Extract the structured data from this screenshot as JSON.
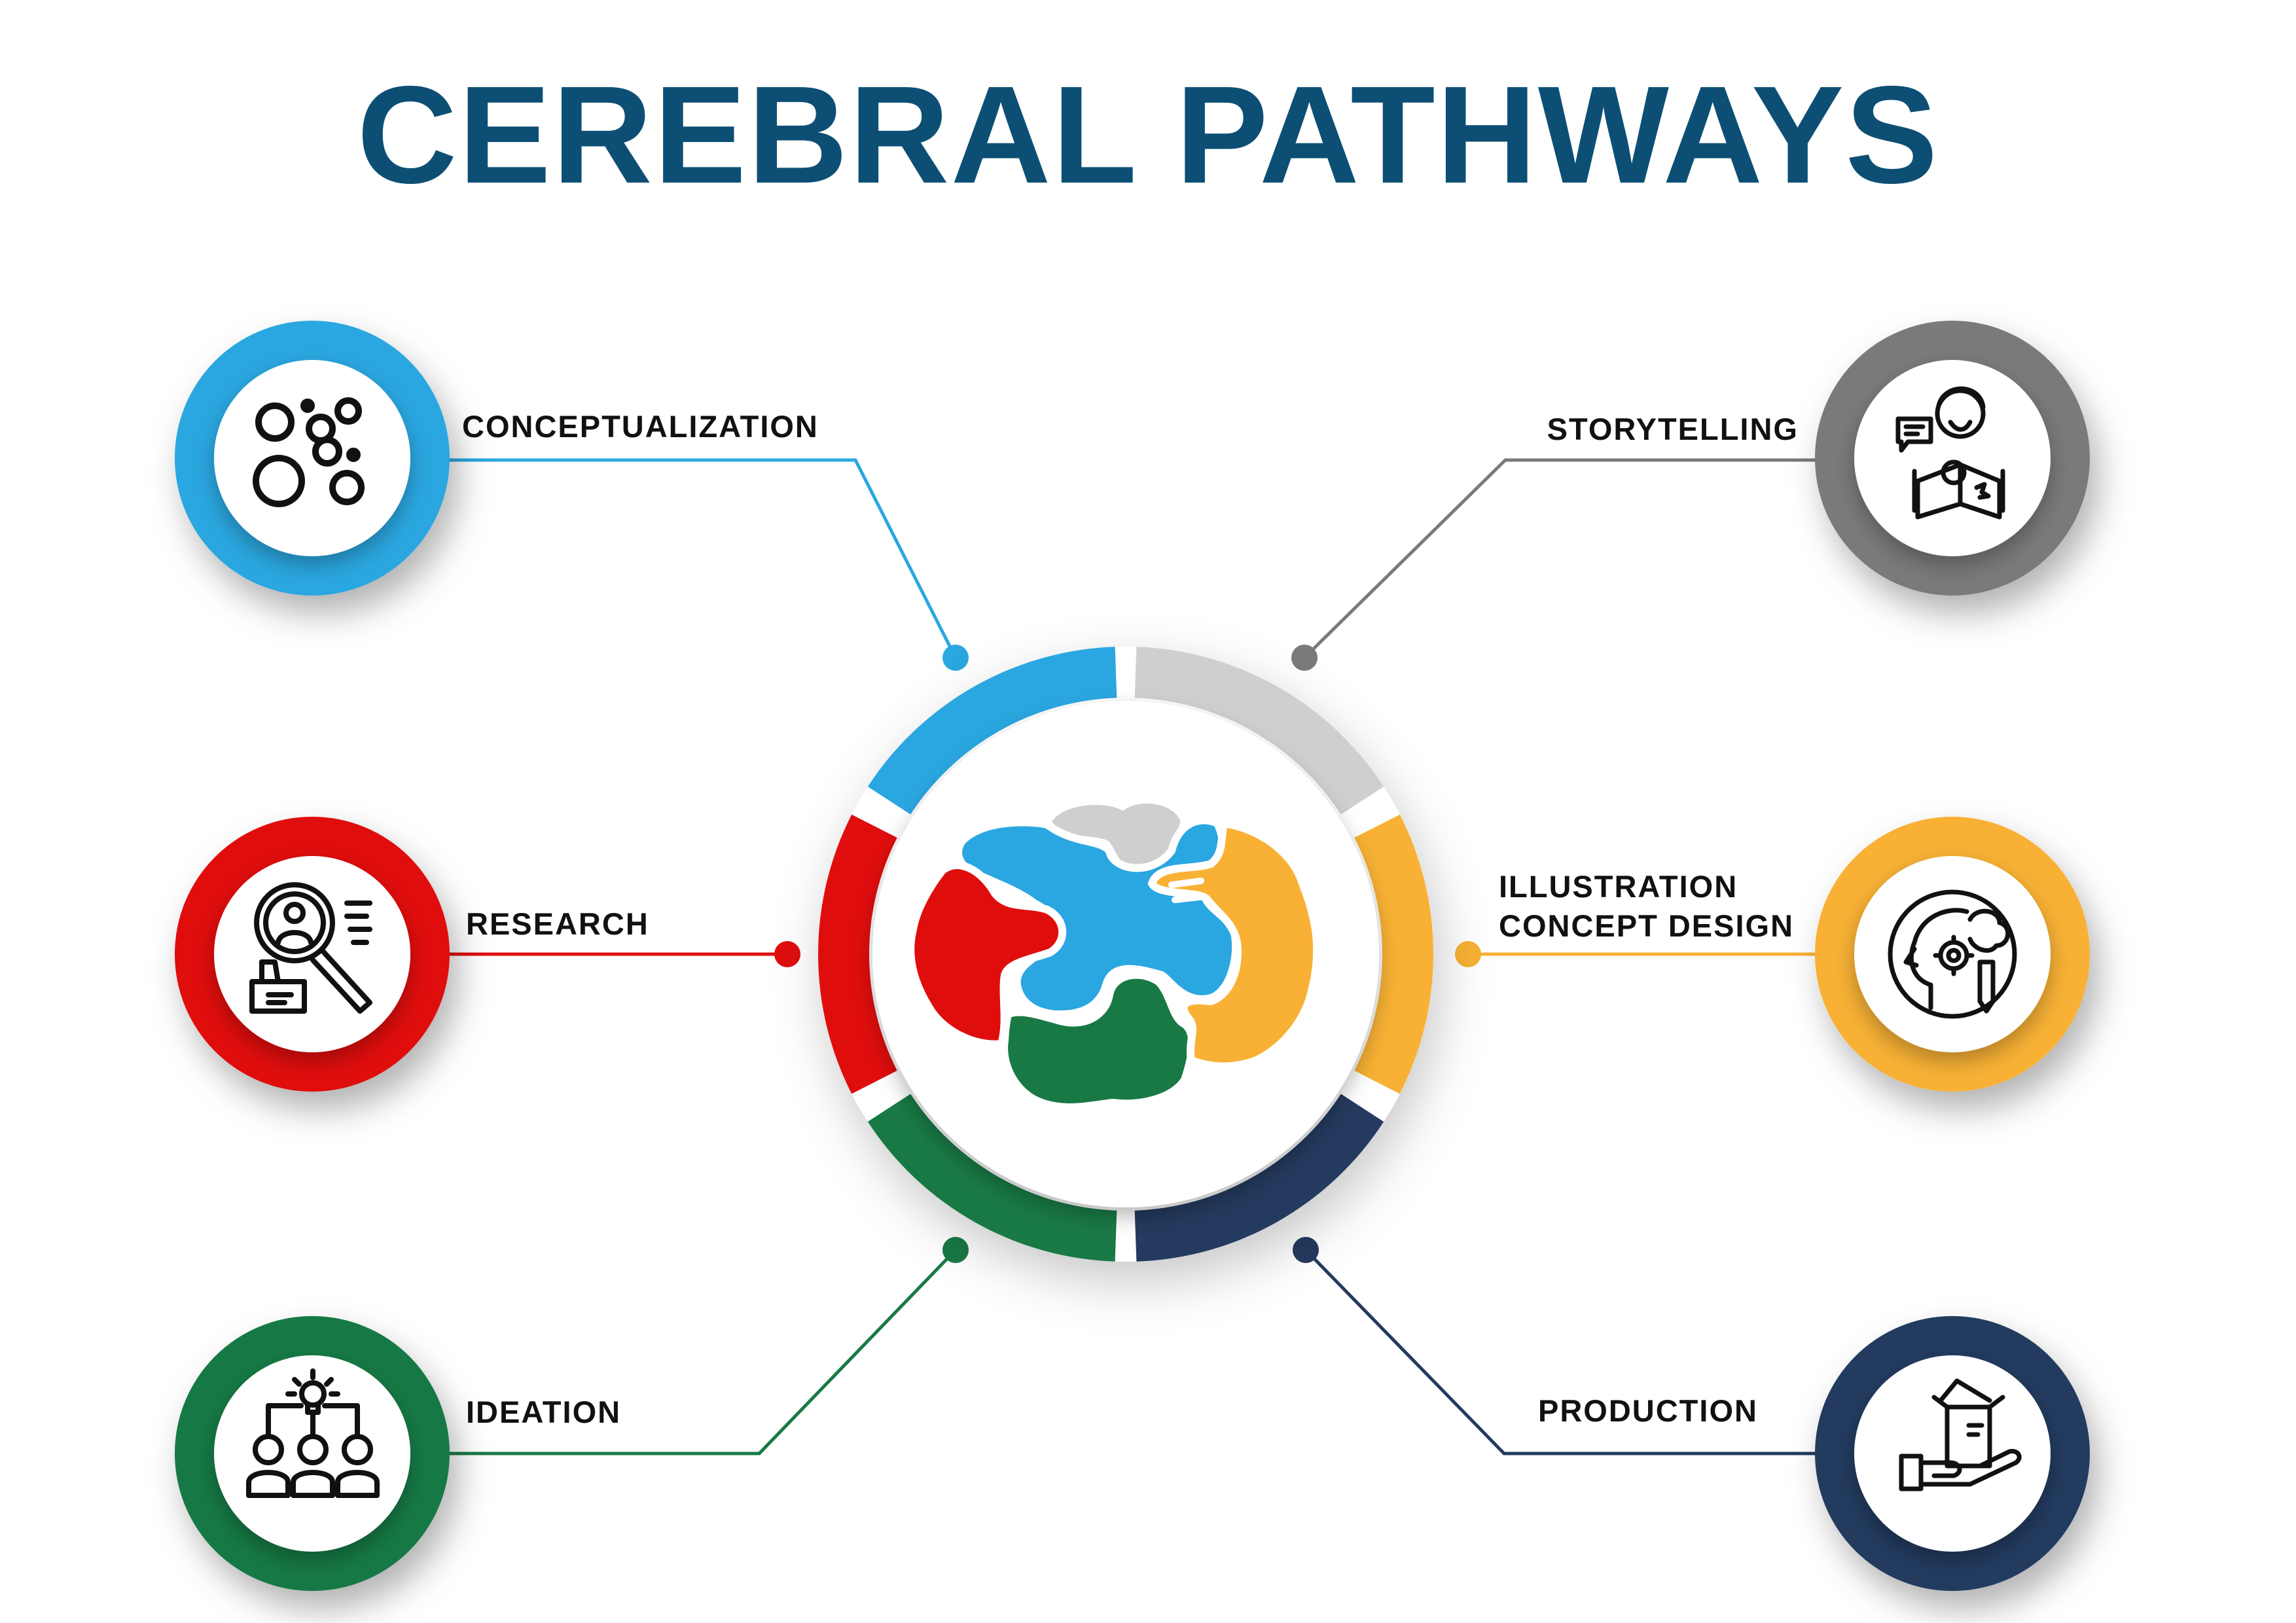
{
  "title": "CEREBRAL PATHWAYS",
  "colors": {
    "title": "#0d4f74",
    "conceptualization": "#2aa7e0",
    "research": "#e00d0d",
    "ideation": "#197944",
    "storytelling": "#7a7a7a",
    "storytelling_segment": "#cfcfcf",
    "illustration": "#f8b134",
    "production": "#243a5e"
  },
  "nodes": [
    {
      "id": "conceptualization",
      "lines": [
        "CONCEPTUALIZATION"
      ],
      "icon": "circles-icon",
      "segment_color": "#2aa7e0"
    },
    {
      "id": "research",
      "lines": [
        "RESEARCH"
      ],
      "icon": "research-person-magnifier-icon",
      "segment_color": "#e00d0d"
    },
    {
      "id": "ideation",
      "lines": [
        "IDEATION"
      ],
      "icon": "team-idea-bulb-icon",
      "segment_color": "#197944"
    },
    {
      "id": "storytelling",
      "lines": [
        "STORYTELLING"
      ],
      "icon": "storyteller-reading-icon",
      "segment_color": "#cfcfcf"
    },
    {
      "id": "illustration",
      "lines": [
        "ILLUSTRATION",
        "CONCEPT DESIGN"
      ],
      "icon": "head-brain-gear-pencil-icon",
      "segment_color": "#f8b134"
    },
    {
      "id": "production",
      "lines": [
        "PRODUCTION"
      ],
      "icon": "hand-holding-box-icon",
      "segment_color": "#243a5e"
    }
  ],
  "center_icon": "puzzle-brain-icon"
}
